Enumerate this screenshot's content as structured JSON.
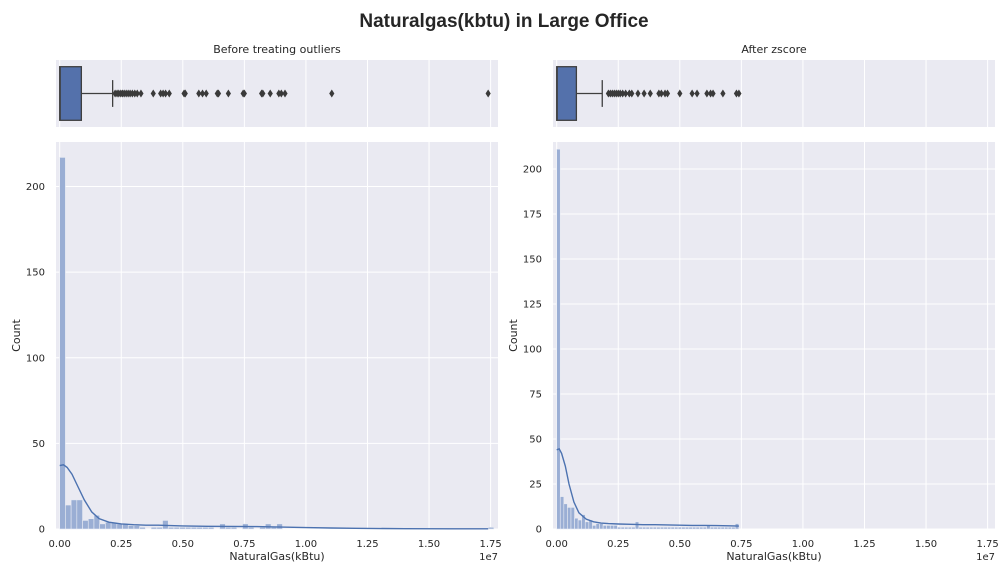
{
  "figure": {
    "title": "Naturalgas(kbtu) in Large Office",
    "colors": {
      "background": "#eaeaf2",
      "grid": "#ffffff",
      "box": "#5471ab",
      "hist": "#9aaed4",
      "kde": "#4c72b0",
      "text": "#262626",
      "flier": "#3a3a3a"
    }
  },
  "chart_data": [
    {
      "type": "box",
      "panel": "box-before",
      "title": "Before treating outliers",
      "xlim": [
        -150000,
        17800000
      ],
      "grid": true,
      "q1": 0,
      "median": 20000,
      "q3": 880000,
      "whisker_low": 0,
      "whisker_high": 2150000,
      "fliers": [
        2250000,
        2330000,
        2400000,
        2480000,
        2550000,
        2620000,
        2700000,
        2780000,
        2860000,
        2950000,
        3050000,
        3150000,
        3300000,
        3800000,
        4100000,
        4200000,
        4300000,
        4450000,
        5050000,
        5100000,
        5650000,
        5800000,
        5950000,
        6400000,
        6450000,
        6850000,
        7450000,
        7500000,
        8200000,
        8250000,
        8550000,
        8900000,
        9000000,
        9150000,
        11050000,
        17400000
      ]
    },
    {
      "type": "box",
      "panel": "box-after",
      "title": "After zscore",
      "xlim": [
        -150000,
        17800000
      ],
      "grid": true,
      "q1": 0,
      "median": 20000,
      "q3": 800000,
      "whisker_low": 0,
      "whisker_high": 1850000,
      "fliers": [
        2100000,
        2180000,
        2260000,
        2340000,
        2420000,
        2500000,
        2580000,
        2680000,
        2800000,
        2950000,
        3050000,
        3300000,
        3550000,
        3800000,
        4150000,
        4250000,
        4400000,
        4500000,
        5000000,
        5500000,
        5700000,
        6100000,
        6250000,
        6350000,
        6750000,
        7300000,
        7400000
      ]
    },
    {
      "type": "bar",
      "panel": "hist-before",
      "xlabel": "NaturalGas(kBtu)",
      "ylabel": "Count",
      "offset_label": "1e7",
      "xlim": [
        -150000,
        17800000
      ],
      "ylim": [
        0,
        226
      ],
      "grid": true,
      "xticks": [
        0,
        2500000,
        5000000,
        7500000,
        10000000,
        12500000,
        15000000,
        17500000
      ],
      "xtick_labels": [
        "0.00",
        "0.25",
        "0.50",
        "0.75",
        "1.00",
        "1.25",
        "1.50",
        "1.75"
      ],
      "yticks": [
        0,
        50,
        100,
        150,
        200
      ],
      "bin_width": 232000,
      "counts": [
        217,
        14,
        17,
        17,
        5,
        6,
        8,
        3,
        4,
        4,
        3,
        3,
        2,
        2,
        1,
        0,
        1,
        1,
        5,
        1,
        1,
        1,
        1,
        1,
        1,
        1,
        1,
        0,
        3,
        1,
        1,
        0,
        3,
        1,
        0,
        1,
        3,
        1,
        3,
        0,
        0,
        0,
        0,
        0,
        0,
        0,
        0,
        0,
        0,
        0,
        0,
        0,
        0,
        0,
        0,
        0,
        0,
        0,
        0,
        0,
        0,
        0,
        0,
        0,
        0,
        0,
        0,
        0,
        0,
        0,
        0,
        0,
        0,
        0,
        0,
        1
      ],
      "kde": {
        "x": [
          0,
          150000,
          300000,
          500000,
          700000,
          1000000,
          1300000,
          1600000,
          2000000,
          2500000,
          3000000,
          3500000,
          4000000,
          4500000,
          5000000,
          6000000,
          7000000,
          8000000,
          9000000,
          10000000,
          11000000,
          12000000,
          14000000,
          16000000,
          17400000
        ],
        "y": [
          37,
          37.5,
          36,
          32,
          26,
          17,
          10,
          6,
          4,
          3,
          2.5,
          2.2,
          2.2,
          2,
          1.8,
          1.6,
          1.5,
          1.4,
          1.1,
          0.8,
          0.6,
          0.4,
          0.2,
          0.1,
          0.1
        ]
      }
    },
    {
      "type": "bar",
      "panel": "hist-after",
      "xlabel": "NaturalGas(kBtu)",
      "ylabel": "Count",
      "offset_label": "1e7",
      "xlim": [
        -150000,
        17800000
      ],
      "ylim": [
        0,
        215
      ],
      "grid": true,
      "xticks": [
        0,
        2500000,
        5000000,
        7500000,
        10000000,
        12500000,
        15000000,
        17500000
      ],
      "xtick_labels": [
        "0.00",
        "0.25",
        "0.50",
        "0.75",
        "1.00",
        "1.25",
        "1.50",
        "1.75"
      ],
      "yticks": [
        0,
        25,
        50,
        75,
        100,
        125,
        150,
        175,
        200
      ],
      "bin_width": 145000,
      "counts": [
        211,
        18,
        14,
        12,
        12,
        6,
        5,
        8,
        4,
        5,
        2,
        3,
        3,
        2,
        2,
        2,
        2,
        1,
        1,
        1,
        1,
        1,
        4,
        1,
        1,
        1,
        1,
        1,
        1,
        1,
        1,
        1,
        1,
        1,
        1,
        1,
        1,
        1,
        1,
        1,
        1,
        1,
        2,
        1,
        1,
        1,
        1,
        1,
        1,
        1,
        3
      ],
      "kde": {
        "x": [
          0,
          100000,
          200000,
          350000,
          500000,
          700000,
          900000,
          1200000,
          1500000,
          1800000,
          2100000,
          2500000,
          3000000,
          3500000,
          4000000,
          4500000,
          5000000,
          5500000,
          6000000,
          6500000,
          7000000,
          7400000
        ],
        "y": [
          44,
          44.5,
          42,
          35,
          25,
          15,
          9,
          5.5,
          4,
          3.3,
          3,
          2.8,
          2.6,
          2.4,
          2.4,
          2.3,
          2.1,
          2.0,
          2.0,
          1.9,
          1.8,
          1.6
        ]
      }
    }
  ]
}
